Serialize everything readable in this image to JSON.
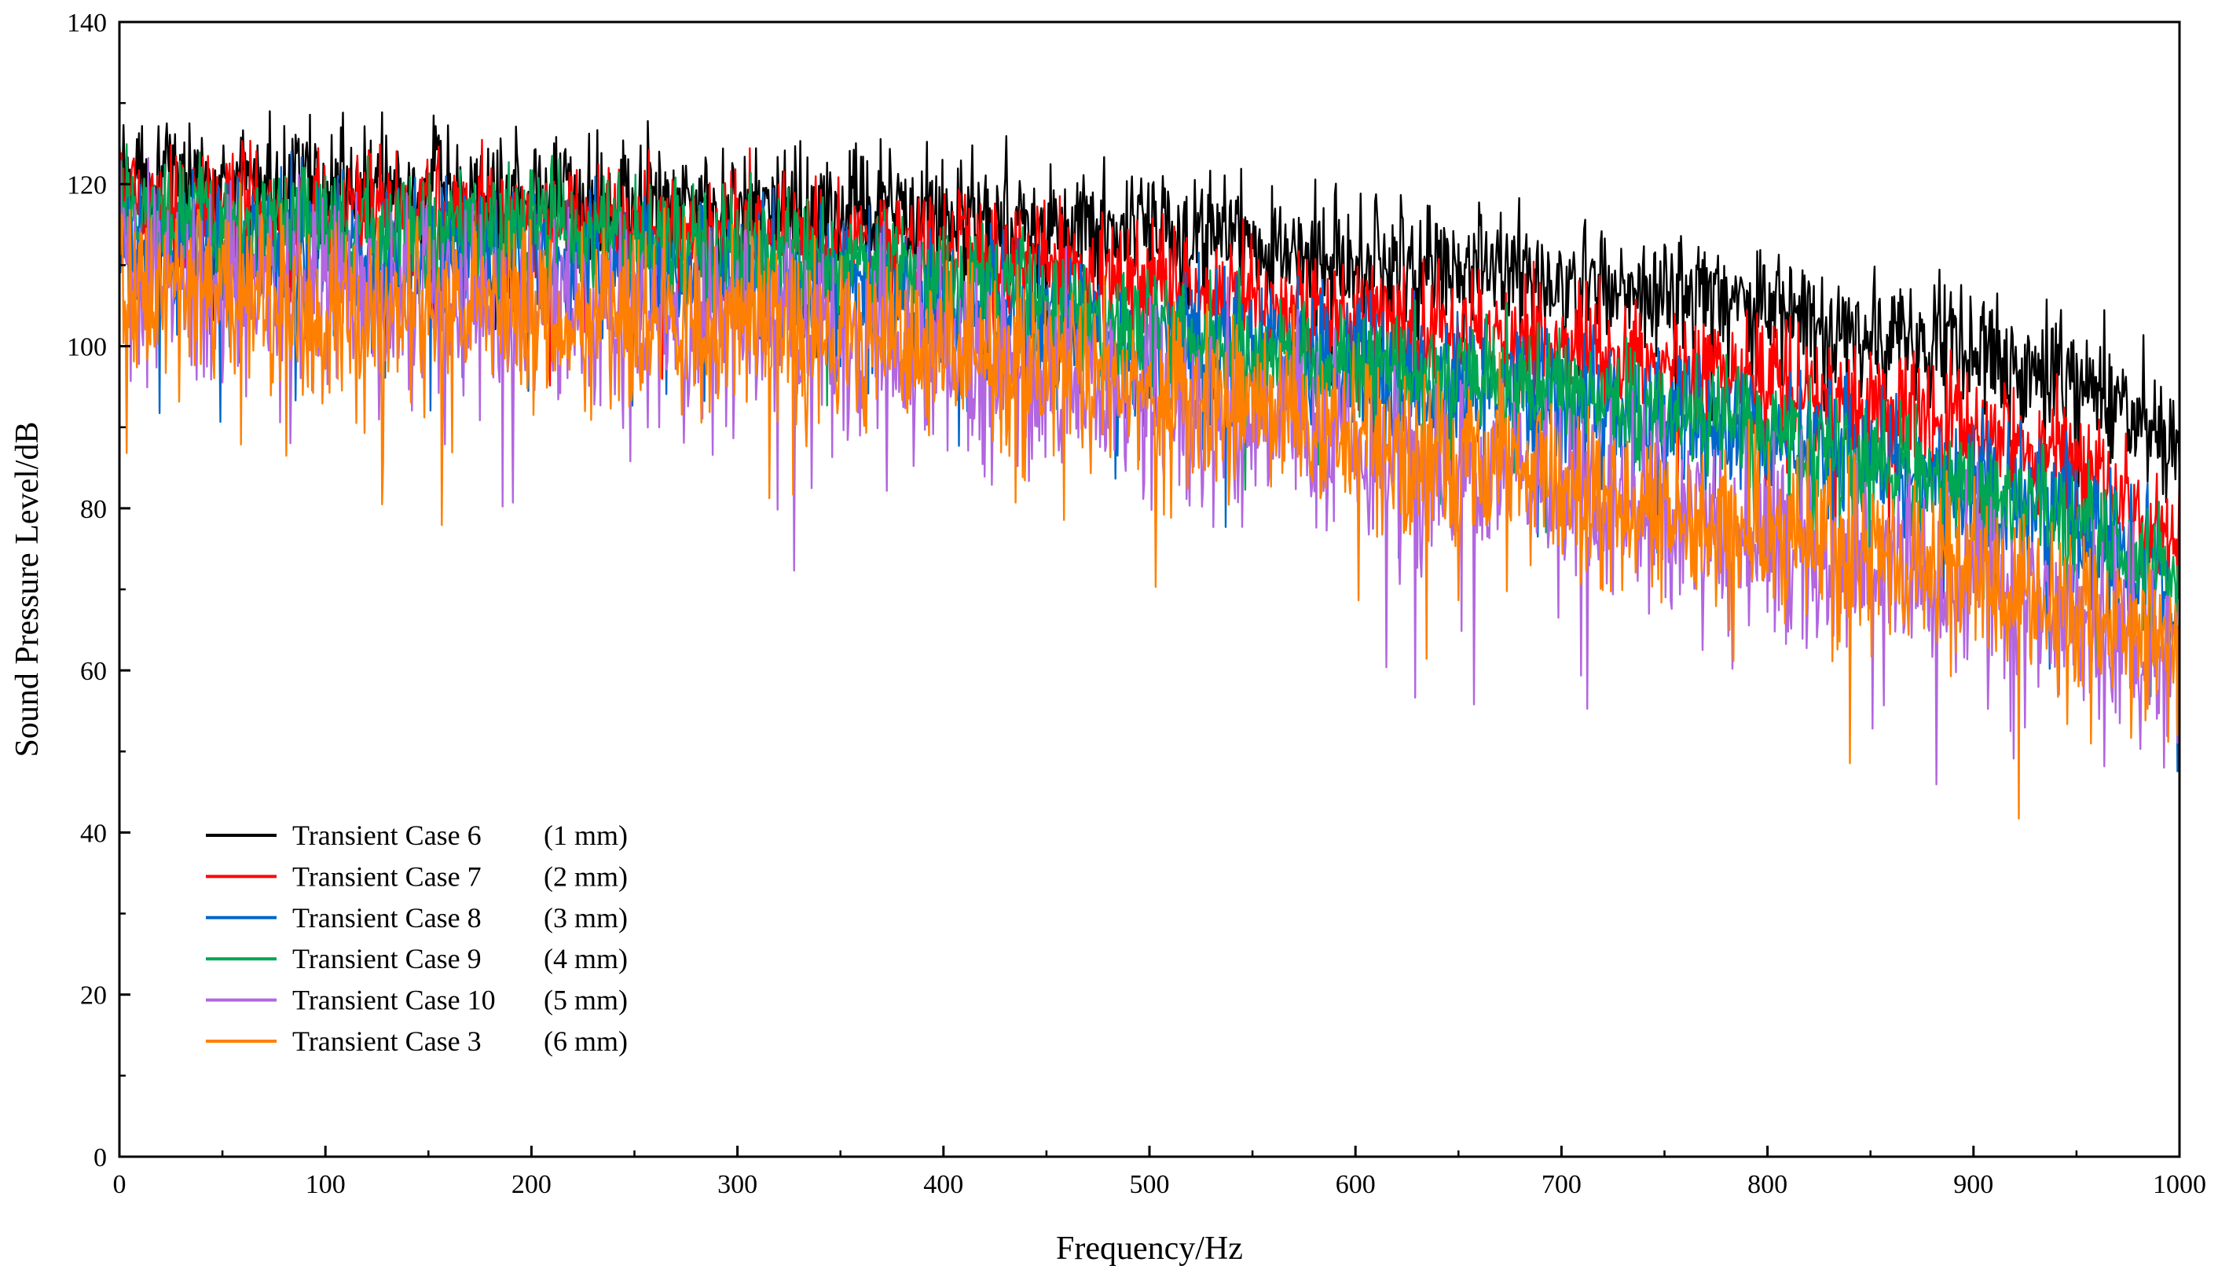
{
  "chart_data": {
    "type": "line",
    "title": "",
    "xlabel": "Frequency/Hz",
    "ylabel": "Sound Pressure Level/dB",
    "xlim": [
      0,
      1000
    ],
    "ylim": [
      0,
      140
    ],
    "xticks": [
      0,
      100,
      200,
      300,
      400,
      500,
      600,
      700,
      800,
      900,
      1000
    ],
    "yticks": [
      0,
      20,
      40,
      60,
      80,
      100,
      120,
      140
    ],
    "xtick_labels": [
      "0",
      "100",
      "200",
      "300",
      "400",
      "500",
      "600",
      "700",
      "800",
      "900",
      "1000"
    ],
    "ytick_labels": [
      "0",
      "20",
      "40",
      "60",
      "80",
      "100",
      "120",
      "140"
    ],
    "grid": false,
    "legend_position": "bottom-left",
    "x_knots": [
      0,
      50,
      100,
      150,
      200,
      250,
      300,
      350,
      400,
      450,
      500,
      550,
      600,
      650,
      700,
      750,
      800,
      850,
      900,
      950,
      1000
    ],
    "series": [
      {
        "name": "Transient Case 6",
        "size": "(1 mm)",
        "color": "#000000",
        "mean_level": [
          121,
          120,
          119.5,
          119,
          118.5,
          118,
          117.5,
          116.5,
          116,
          115,
          114,
          112.5,
          111,
          109.5,
          108,
          106,
          104,
          101.5,
          99,
          96,
          88
        ],
        "fluctuation_amplitude": 5
      },
      {
        "name": "Transient Case 7",
        "size": "(2 mm)",
        "color": "#ff0000",
        "mean_level": [
          118,
          117,
          116.5,
          116,
          115.5,
          115,
          114.5,
          113,
          112,
          110,
          108,
          106,
          104,
          102,
          100,
          98,
          96,
          93,
          90,
          86,
          76
        ],
        "fluctuation_amplitude": 5
      },
      {
        "name": "Transient Case 8",
        "size": "(3 mm)",
        "color": "#0066cc",
        "mean_level": [
          113,
          112,
          111.5,
          111,
          110.5,
          110,
          109,
          107.5,
          105.5,
          103,
          101,
          99,
          97,
          95,
          93,
          91,
          88.5,
          86,
          83,
          79,
          70
        ],
        "fluctuation_amplitude": 6
      },
      {
        "name": "Transient Case 9",
        "size": "(4 mm)",
        "color": "#00a651",
        "mean_level": [
          117,
          116,
          115,
          114.5,
          114,
          113,
          112,
          110,
          108,
          105,
          102,
          100,
          98,
          96,
          94,
          92,
          89,
          86,
          83,
          79,
          70
        ],
        "fluctuation_amplitude": 5
      },
      {
        "name": "Transient Case 10",
        "size": "(5 mm)",
        "color": "#b266e0",
        "mean_level": [
          110,
          108,
          107,
          106,
          105,
          104,
          103,
          101,
          99,
          97,
          94,
          91,
          88,
          85,
          82,
          79,
          76,
          73,
          70,
          67,
          60
        ],
        "fluctuation_amplitude": 8
      },
      {
        "name": "Transient Case 3",
        "size": "(6 mm)",
        "color": "#ff8000",
        "mean_level": [
          108,
          106,
          105,
          104.5,
          104,
          103.5,
          103,
          102,
          100,
          98,
          95,
          92,
          89,
          86,
          83,
          80,
          77,
          74,
          71,
          68,
          63
        ],
        "fluctuation_amplitude": 7
      }
    ]
  }
}
